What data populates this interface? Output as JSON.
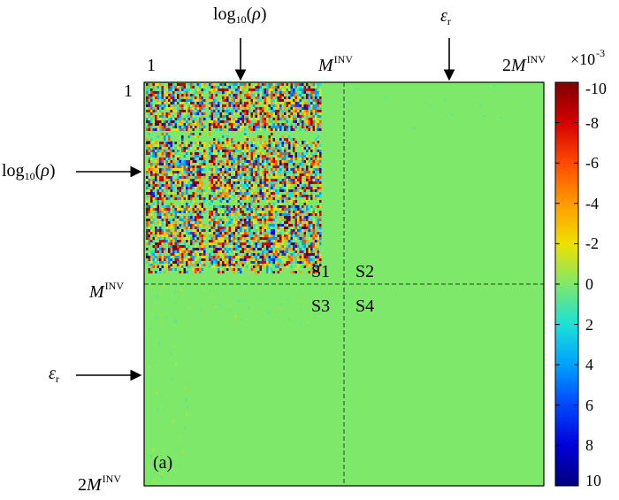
{
  "matrix": {
    "top_ticks": {
      "first": "1",
      "middle_base": "M",
      "middle_sup": "INV",
      "end_prefix": "2",
      "end_base": "M",
      "end_sup": "INV"
    },
    "left_ticks": {
      "first": "1",
      "middle_base": "M",
      "middle_sup": "INV",
      "end_prefix": "2",
      "end_base": "M",
      "end_sup": "INV"
    },
    "top_arrows": [
      {
        "pre": "log",
        "sub": "10",
        "post": "(",
        "var": "ρ",
        "close": ")"
      },
      {
        "var": "ε",
        "sub": "r"
      }
    ],
    "left_arrows": [
      {
        "pre": "log",
        "sub": "10",
        "post": "(",
        "var": "ρ",
        "close": ")"
      },
      {
        "var": "ε",
        "sub": "r"
      }
    ],
    "blocks": [
      "S1",
      "S2",
      "S3",
      "S4"
    ],
    "panel_label": "(a)",
    "background_color": "#7ee86a"
  },
  "colorbar": {
    "scale_label": "×10",
    "scale_exp": "-3",
    "ticks": [
      "-10",
      "-8",
      "-6",
      "-4",
      "-2",
      "0",
      "2",
      "4",
      "6",
      "8",
      "10"
    ],
    "colors": [
      "#7f0000",
      "#d40000",
      "#ff4a00",
      "#ff9a00",
      "#f0e000",
      "#7ee86a",
      "#1ce0d8",
      "#00a0ff",
      "#0046ff",
      "#0000d8",
      "#00007f"
    ]
  }
}
